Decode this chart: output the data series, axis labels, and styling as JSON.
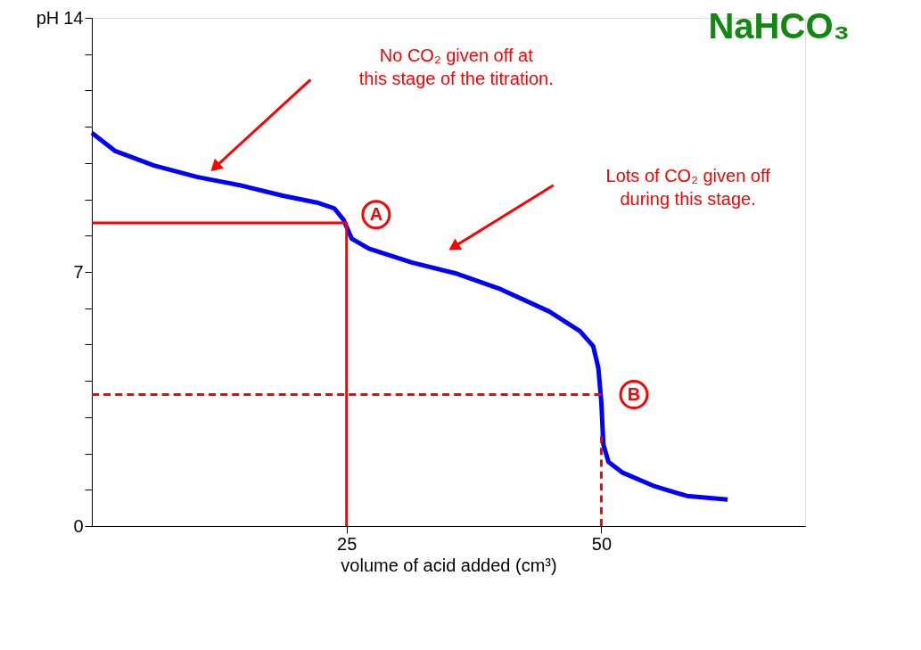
{
  "chart_data": {
    "type": "line",
    "title": "NaHCO₃",
    "xlabel": "volume of acid added (cm³)",
    "ylabel": "pH",
    "xlim": [
      0,
      70
    ],
    "xticks": [
      25,
      50
    ],
    "ylim": [
      0,
      14
    ],
    "yticks": [
      0,
      {
        "value": 1,
        "label": null
      },
      {
        "value": 2,
        "label": null
      },
      {
        "value": 3,
        "label": null
      },
      {
        "value": 4,
        "label": null
      },
      {
        "value": 5,
        "label": null
      },
      {
        "value": 6,
        "label": null
      },
      7,
      {
        "value": 8,
        "label": null
      },
      {
        "value": 9,
        "label": null
      },
      {
        "value": 10,
        "label": null
      },
      {
        "value": 11,
        "label": null
      },
      {
        "value": 12,
        "label": null
      },
      {
        "value": 13,
        "label": null
      },
      14
    ],
    "grid": false,
    "marker": "none",
    "series": [
      {
        "color": "#0000ff",
        "line_style": "solid",
        "x": [
          0,
          2.3,
          6.1,
          10.3,
          14.5,
          18.75,
          22.1,
          23.8,
          24.7,
          25.5,
          27.2,
          31.4,
          35.6,
          39.9,
          44.9,
          47.9,
          49.2,
          49.7,
          50,
          50.2,
          50.7,
          52.1,
          55.1,
          58.4,
          62.4
        ],
        "values": [
          10.83,
          10.33,
          9.93,
          9.62,
          9.39,
          9.1,
          8.91,
          8.75,
          8.44,
          7.92,
          7.64,
          7.26,
          6.97,
          6.55,
          5.91,
          5.37,
          4.96,
          4.37,
          3.43,
          2.25,
          1.77,
          1.47,
          1.11,
          0.83,
          0.73
        ]
      },
      {
        "color": "#ff0000",
        "line_style": "solid",
        "x": [
          0,
          25,
          25
        ],
        "values": [
          8.35,
          8.35,
          0
        ]
      },
      {
        "color": "#ff0000",
        "line_style": "dashed",
        "x": [
          0,
          50
        ],
        "values": [
          3.62,
          3.62
        ]
      },
      {
        "color": "#ff0000",
        "line_style": "dashed",
        "x": [
          50,
          50
        ],
        "values": [
          2.48,
          0
        ]
      }
    ],
    "annotations": [
      "No CO₂ given off at\nthis stage of the titration.",
      "Lots of CO₂ given off\nduring this stage.",
      {
        "text": "A",
        "x": 27.9,
        "y": 8.58
      },
      {
        "text": "B",
        "x": 53.2,
        "y": 3.62
      }
    ]
  }
}
